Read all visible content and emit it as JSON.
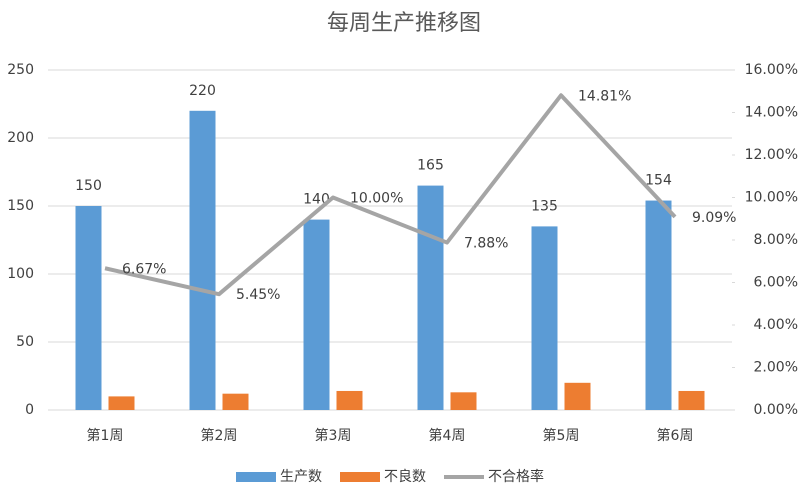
{
  "chart_data": {
    "type": "combo",
    "title": "每周生产推移图",
    "categories": [
      "第1周",
      "第2周",
      "第3周",
      "第4周",
      "第5周",
      "第6周"
    ],
    "series": [
      {
        "name": "生产数",
        "type": "bar",
        "color": "#5b9bd5",
        "values": [
          150,
          220,
          140,
          165,
          135,
          154
        ],
        "show_labels": true
      },
      {
        "name": "不良数",
        "type": "bar",
        "color": "#ed7d31",
        "values": [
          10,
          12,
          14,
          13,
          20,
          14
        ],
        "show_labels": false
      },
      {
        "name": "不合格率",
        "type": "line",
        "axis": "y2",
        "color": "#a5a5a5",
        "values": [
          6.67,
          5.45,
          10.0,
          7.88,
          14.81,
          9.09
        ],
        "value_labels": [
          "6.67%",
          "5.45%",
          "10.00%",
          "7.88%",
          "14.81%",
          "9.09%"
        ],
        "show_labels": true
      }
    ],
    "ylim": [
      0,
      250
    ],
    "yticks": [
      0,
      50,
      100,
      150,
      200,
      250
    ],
    "y2lim": [
      0,
      16
    ],
    "y2ticks": [
      {
        "value": 0,
        "label": "0.00%"
      },
      {
        "value": 2,
        "label": "2.00%"
      },
      {
        "value": 4,
        "label": "4.00%"
      },
      {
        "value": 6,
        "label": "6.00%"
      },
      {
        "value": 8,
        "label": "8.00%"
      },
      {
        "value": 10,
        "label": "10.00%"
      },
      {
        "value": 12,
        "label": "12.00%"
      },
      {
        "value": 14,
        "label": "14.00%"
      },
      {
        "value": 16,
        "label": "16.00%"
      }
    ],
    "grid": true,
    "legend": "bottom"
  }
}
